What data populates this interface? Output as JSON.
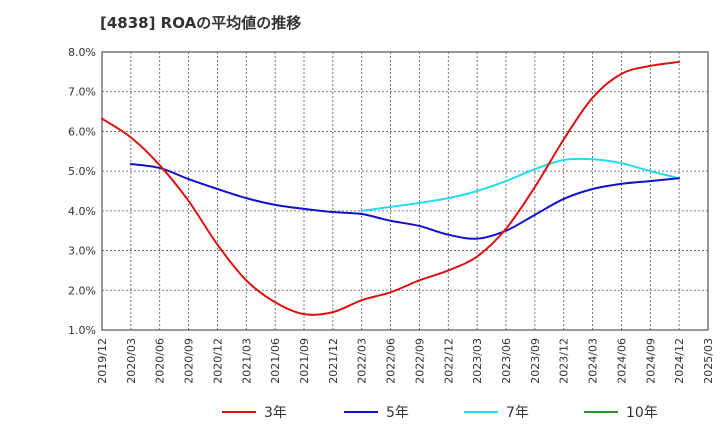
{
  "chart_data": {
    "type": "line",
    "title": "[4838]  ROAの平均値の推移",
    "xlabel": "",
    "ylabel": "",
    "ylim": [
      1.0,
      8.0
    ],
    "y_ticks": [
      "1.0%",
      "2.0%",
      "3.0%",
      "4.0%",
      "5.0%",
      "6.0%",
      "7.0%",
      "8.0%"
    ],
    "x_ticks": [
      "2019/12",
      "2020/03",
      "2020/06",
      "2020/09",
      "2020/12",
      "2021/03",
      "2021/06",
      "2021/09",
      "2021/12",
      "2022/03",
      "2022/06",
      "2022/09",
      "2022/12",
      "2023/03",
      "2023/06",
      "2023/09",
      "2023/12",
      "2024/03",
      "2024/06",
      "2024/09",
      "2024/12",
      "2025/03"
    ],
    "grid": true,
    "legend_position": "bottom",
    "series": [
      {
        "name": "3年",
        "color": "#dd1111",
        "x": [
          "2019/12",
          "2020/03",
          "2020/06",
          "2020/09",
          "2020/12",
          "2021/03",
          "2021/06",
          "2021/09",
          "2021/12",
          "2022/03",
          "2022/06",
          "2022/09",
          "2022/12",
          "2023/03",
          "2023/06",
          "2023/09",
          "2023/12",
          "2024/03",
          "2024/06",
          "2024/09",
          "2024/12"
        ],
        "values": [
          6.32,
          5.85,
          5.15,
          4.25,
          3.15,
          2.25,
          1.7,
          1.4,
          1.45,
          1.75,
          1.95,
          2.25,
          2.5,
          2.85,
          3.55,
          4.6,
          5.8,
          6.85,
          7.45,
          7.65,
          7.75
        ]
      },
      {
        "name": "5年",
        "color": "#1111cc",
        "x": [
          "2020/03",
          "2020/06",
          "2020/09",
          "2020/12",
          "2021/03",
          "2021/06",
          "2021/09",
          "2021/12",
          "2022/03",
          "2022/06",
          "2022/09",
          "2022/12",
          "2023/03",
          "2023/06",
          "2023/09",
          "2023/12",
          "2024/03",
          "2024/06",
          "2024/09",
          "2024/12"
        ],
        "values": [
          5.18,
          5.08,
          4.8,
          4.55,
          4.32,
          4.15,
          4.05,
          3.97,
          3.92,
          3.75,
          3.62,
          3.4,
          3.3,
          3.5,
          3.9,
          4.3,
          4.55,
          4.68,
          4.75,
          4.82
        ]
      },
      {
        "name": "7年",
        "color": "#22ddee",
        "x": [
          "2022/03",
          "2022/06",
          "2022/09",
          "2022/12",
          "2023/03",
          "2023/06",
          "2023/09",
          "2023/12",
          "2024/03",
          "2024/06",
          "2024/09",
          "2024/12"
        ],
        "values": [
          4.0,
          4.1,
          4.2,
          4.32,
          4.5,
          4.75,
          5.05,
          5.28,
          5.3,
          5.2,
          5.0,
          4.82
        ]
      },
      {
        "name": "10年",
        "color": "#229922",
        "x": [],
        "values": []
      }
    ]
  }
}
